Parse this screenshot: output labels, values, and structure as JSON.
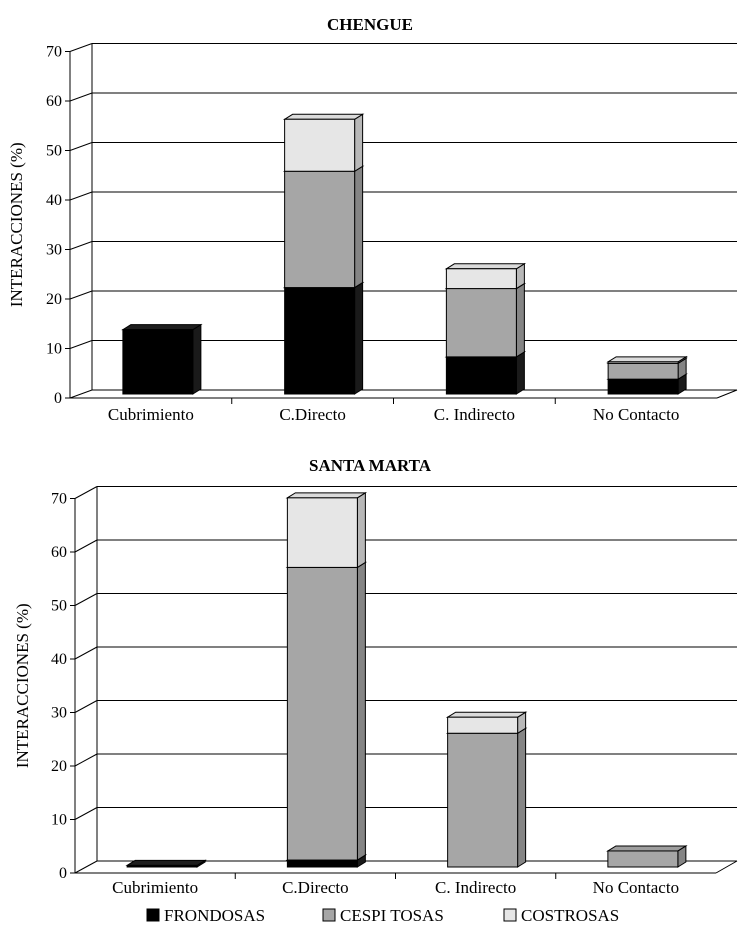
{
  "chart_data": [
    {
      "type": "bar",
      "stacked": true,
      "title": "CHENGUE",
      "ylabel": "INTERACCIONES (%)",
      "ylim": [
        0,
        70
      ],
      "yticks": [
        0,
        10,
        20,
        30,
        40,
        50,
        60,
        70
      ],
      "grid": true,
      "categories": [
        "Cubrimiento",
        "C.Directo",
        "C. Indirecto",
        "No Contacto"
      ],
      "series": [
        {
          "name": "FRONDOSAS",
          "color": "#000000",
          "values": [
            13,
            21.5,
            7.5,
            3
          ]
        },
        {
          "name": "CESPI TOSAS",
          "color": "#a6a6a6",
          "values": [
            0,
            23.5,
            13.8,
            3.2
          ]
        },
        {
          "name": "COSTROSAS",
          "color": "#e6e6e6",
          "values": [
            0,
            10.5,
            4,
            0.3
          ]
        }
      ]
    },
    {
      "type": "bar",
      "stacked": true,
      "title": "SANTA MARTA",
      "ylabel": "INTERACCIONES (%)",
      "ylim": [
        0,
        70
      ],
      "yticks": [
        0,
        10,
        20,
        30,
        40,
        50,
        60,
        70
      ],
      "grid": true,
      "categories": [
        "Cubrimiento",
        "C.Directo",
        "C. Indirecto",
        "No Contacto"
      ],
      "series": [
        {
          "name": "FRONDOSAS",
          "color": "#000000",
          "values": [
            0.3,
            1.3,
            0,
            0
          ]
        },
        {
          "name": "CESPI TOSAS",
          "color": "#a6a6a6",
          "values": [
            0,
            54.7,
            25,
            3
          ]
        },
        {
          "name": "COSTROSAS",
          "color": "#e6e6e6",
          "values": [
            0,
            13,
            3,
            0
          ]
        }
      ]
    }
  ],
  "legend": {
    "position": "bottom",
    "items": [
      {
        "label": "FRONDOSAS",
        "color": "#000000"
      },
      {
        "label": "CESPI TOSAS",
        "color": "#a6a6a6"
      },
      {
        "label": "COSTROSAS",
        "color": "#e6e6e6"
      }
    ]
  }
}
